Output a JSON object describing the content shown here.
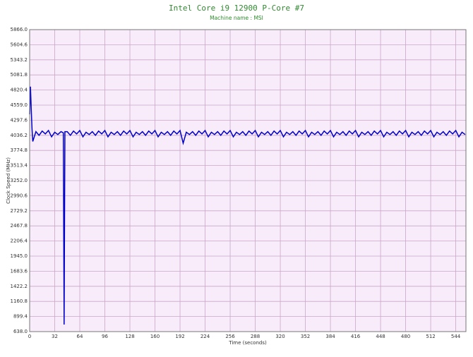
{
  "chart_data": {
    "type": "line",
    "title": "Intel Core i9 12900 P-Core #7",
    "subtitle": "Machine name : MSI",
    "x_label": "Time (seconds)",
    "y_label": "Clock Speed (MHz)",
    "color": "#0000cc",
    "background": "#f8ecfa",
    "grid": true,
    "xlim": [
      0,
      557
    ],
    "ylim": [
      638,
      5866
    ],
    "xticks": [
      0,
      32,
      64,
      96,
      128,
      160,
      192,
      224,
      256,
      288,
      320,
      352,
      384,
      416,
      448,
      480,
      512,
      544
    ],
    "yticks": [
      {
        "value": 638,
        "label": "638.0"
      },
      899.4,
      1160.8,
      1422.2,
      1683.6,
      {
        "value": 1945,
        "label": "1945.0"
      },
      2206.4,
      2467.8,
      2729.2,
      2990.6,
      {
        "value": 3252,
        "label": "3252.0"
      },
      3513.4,
      3774.8,
      4036.2,
      4297.6,
      {
        "value": 4559,
        "label": "4559.0"
      },
      4820.4,
      5081.8,
      5343.2,
      5604.6,
      {
        "value": 5866,
        "label": "5866.0"
      }
    ],
    "x": [
      0,
      1,
      2,
      3,
      4,
      8,
      12,
      16,
      20,
      24,
      28,
      32,
      36,
      40,
      43,
      44,
      45,
      48,
      52,
      56,
      60,
      64,
      68,
      72,
      76,
      80,
      84,
      88,
      92,
      96,
      100,
      104,
      108,
      112,
      116,
      120,
      124,
      128,
      132,
      136,
      140,
      144,
      148,
      152,
      156,
      160,
      164,
      168,
      172,
      176,
      180,
      184,
      188,
      192,
      196,
      200,
      204,
      208,
      212,
      216,
      220,
      224,
      228,
      232,
      236,
      240,
      244,
      248,
      252,
      256,
      260,
      264,
      268,
      272,
      276,
      280,
      284,
      288,
      292,
      296,
      300,
      304,
      308,
      312,
      316,
      320,
      324,
      328,
      332,
      336,
      340,
      344,
      348,
      352,
      356,
      360,
      364,
      368,
      372,
      376,
      380,
      384,
      388,
      392,
      396,
      400,
      404,
      408,
      412,
      416,
      420,
      424,
      428,
      432,
      436,
      440,
      444,
      448,
      452,
      456,
      460,
      464,
      468,
      472,
      476,
      480,
      484,
      488,
      492,
      496,
      500,
      504,
      508,
      512,
      516,
      520,
      524,
      528,
      532,
      536,
      540,
      544,
      548,
      552,
      556
    ],
    "values": [
      4400,
      4880,
      4500,
      4150,
      3930,
      4100,
      4036,
      4110,
      4060,
      4120,
      4010,
      4090,
      4050,
      4100,
      4080,
      760,
      4100,
      4100,
      4036,
      4110,
      4060,
      4120,
      4010,
      4090,
      4050,
      4100,
      4036,
      4110,
      4060,
      4120,
      4010,
      4090,
      4050,
      4100,
      4036,
      4110,
      4060,
      4120,
      4010,
      4090,
      4050,
      4100,
      4036,
      4110,
      4060,
      4120,
      4010,
      4090,
      4050,
      4100,
      4036,
      4110,
      4060,
      4120,
      3900,
      4090,
      4050,
      4100,
      4036,
      4110,
      4060,
      4120,
      4010,
      4090,
      4050,
      4100,
      4036,
      4110,
      4060,
      4120,
      4010,
      4090,
      4050,
      4100,
      4036,
      4110,
      4060,
      4120,
      4010,
      4090,
      4050,
      4100,
      4036,
      4110,
      4060,
      4120,
      4010,
      4090,
      4050,
      4100,
      4036,
      4110,
      4060,
      4120,
      4010,
      4090,
      4050,
      4100,
      4036,
      4110,
      4060,
      4120,
      4010,
      4090,
      4050,
      4100,
      4036,
      4110,
      4060,
      4120,
      4010,
      4090,
      4050,
      4100,
      4036,
      4110,
      4060,
      4120,
      4010,
      4090,
      4050,
      4100,
      4036,
      4110,
      4060,
      4120,
      4010,
      4090,
      4050,
      4100,
      4036,
      4110,
      4060,
      4120,
      4010,
      4090,
      4050,
      4100,
      4036,
      4110,
      4060,
      4120,
      4010,
      4090,
      4050
    ]
  }
}
